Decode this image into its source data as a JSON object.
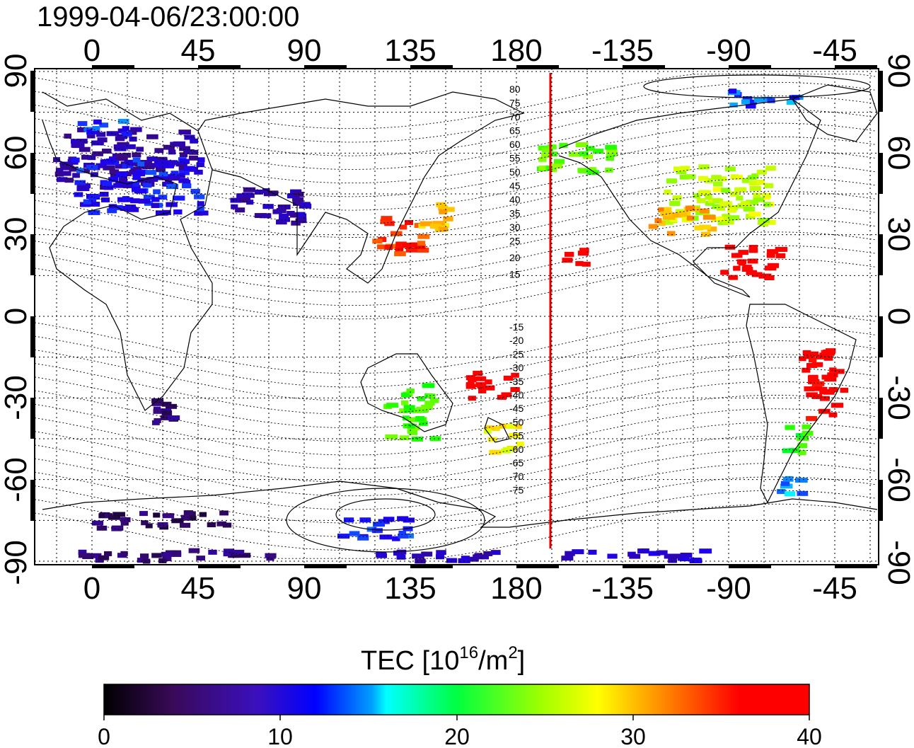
{
  "title": "1999-04-06/23:00:00",
  "colors": {
    "red_line": "#e00000",
    "grid": "#000000",
    "colormap": [
      "#000000",
      "#3a0a7a",
      "#1a00ff",
      "#00ffff",
      "#00ff00",
      "#ffff00",
      "#ff0000"
    ]
  },
  "map": {
    "top_ticks": [
      "0",
      "45",
      "90",
      "135",
      "180",
      "-135",
      "-90",
      "-45"
    ],
    "bottom_ticks": [
      "0",
      "45",
      "90",
      "135",
      "180",
      "-135",
      "-90",
      "-45"
    ],
    "left_ticks": [
      "90",
      "60",
      "30",
      "0",
      "-30",
      "-60",
      "-90"
    ],
    "right_ticks": [
      "90",
      "60",
      "30",
      "0",
      "-30",
      "-60",
      "-90"
    ],
    "contour_labels_north": [
      "80",
      "75",
      "70",
      "65",
      "60",
      "55",
      "50",
      "45",
      "40",
      "35",
      "30",
      "25",
      "20",
      "15"
    ],
    "contour_labels_south": [
      "-15",
      "-20",
      "-25",
      "-30",
      "-35",
      "-40",
      "-45",
      "-50",
      "-55",
      "-60",
      "-65",
      "-70",
      "-75"
    ],
    "red_line_longitude": 194,
    "tec_patches": [
      {
        "lon": 15,
        "lat": 58,
        "w": 60,
        "h": 22,
        "value": 7
      },
      {
        "lon": 20,
        "lat": 48,
        "w": 55,
        "h": 20,
        "value": 11
      },
      {
        "lon": 75,
        "lat": 42,
        "w": 30,
        "h": 10,
        "value": 7
      },
      {
        "lon": 130,
        "lat": 30,
        "w": 20,
        "h": 14,
        "value": 35
      },
      {
        "lon": 145,
        "lat": 38,
        "w": 12,
        "h": 12,
        "value": 30
      },
      {
        "lon": 205,
        "lat": 58,
        "w": 30,
        "h": 12,
        "value": 23
      },
      {
        "lon": -95,
        "lat": 45,
        "w": 45,
        "h": 22,
        "value": 26
      },
      {
        "lon": -110,
        "lat": 35,
        "w": 25,
        "h": 10,
        "value": 31
      },
      {
        "lon": 205,
        "lat": 22,
        "w": 10,
        "h": 6,
        "value": 38
      },
      {
        "lon": -80,
        "lat": 20,
        "w": 25,
        "h": 12,
        "value": 39
      },
      {
        "lon": 170,
        "lat": -25,
        "w": 20,
        "h": 10,
        "value": 39
      },
      {
        "lon": 135,
        "lat": -35,
        "w": 20,
        "h": 20,
        "value": 22
      },
      {
        "lon": 175,
        "lat": -45,
        "w": 15,
        "h": 10,
        "value": 28
      },
      {
        "lon": -50,
        "lat": -25,
        "w": 18,
        "h": 25,
        "value": 38
      },
      {
        "lon": -60,
        "lat": -45,
        "w": 12,
        "h": 10,
        "value": 21
      },
      {
        "lon": -65,
        "lat": -62,
        "w": 12,
        "h": 8,
        "value": 14
      },
      {
        "lon": 120,
        "lat": -78,
        "w": 30,
        "h": 8,
        "value": 12
      },
      {
        "lon": 30,
        "lat": -75,
        "w": 60,
        "h": 6,
        "value": 4
      },
      {
        "lon": 40,
        "lat": -88,
        "w": 90,
        "h": 4,
        "value": 5
      },
      {
        "lon": 150,
        "lat": -88,
        "w": 60,
        "h": 4,
        "value": 8
      },
      {
        "lon": -130,
        "lat": -88,
        "w": 60,
        "h": 4,
        "value": 9
      },
      {
        "lon": 30,
        "lat": -35,
        "w": 15,
        "h": 10,
        "value": 5
      },
      {
        "lon": 80,
        "lat": 38,
        "w": 20,
        "h": 8,
        "value": 8
      },
      {
        "lon": -75,
        "lat": 80,
        "w": 30,
        "h": 6,
        "value": 13
      },
      {
        "lon": 5,
        "lat": 70,
        "w": 20,
        "h": 6,
        "value": 12
      }
    ]
  },
  "colorbar": {
    "title_main": "TEC  [10",
    "title_sup1": "16",
    "title_mid": "/m",
    "title_sup2": "2",
    "title_end": "]",
    "ticks": [
      "0",
      "10",
      "20",
      "30",
      "40"
    ],
    "min": 0,
    "max": 40
  }
}
